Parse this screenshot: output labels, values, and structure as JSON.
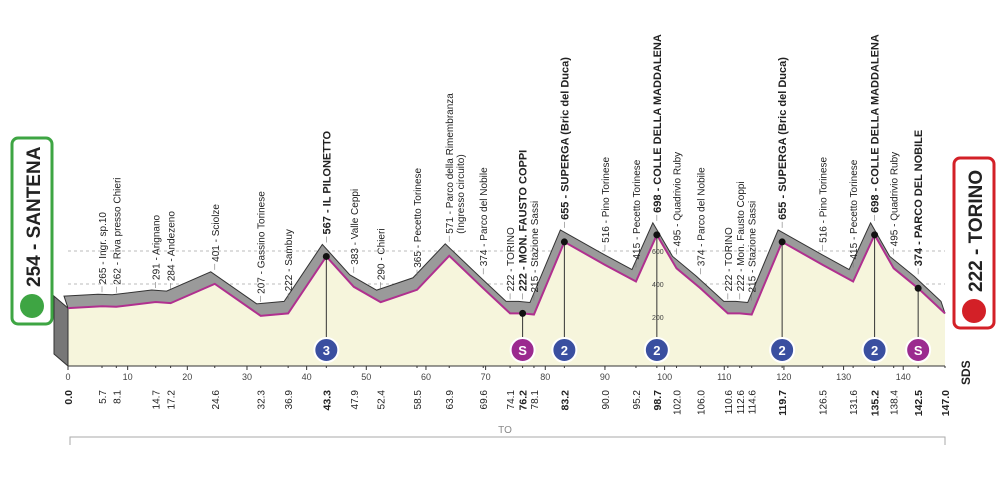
{
  "start": {
    "km": "0.0",
    "alt": 254,
    "label": "254 - SANTENA"
  },
  "finish": {
    "km": "147.0",
    "alt": 222,
    "label": "222 - TORINO"
  },
  "waypoints": [
    {
      "km": "5.7",
      "alt": 265,
      "label": "265 - Ingr. sp.10"
    },
    {
      "km": "8.1",
      "alt": 262,
      "label": "262 - Riva presso Chieri"
    },
    {
      "km": "14.7",
      "alt": 291,
      "label": "291 - Arignano"
    },
    {
      "km": "17.2",
      "alt": 284,
      "label": "284 - Andezeno"
    },
    {
      "km": "24.6",
      "alt": 401,
      "label": "401 - Sciolze"
    },
    {
      "km": "32.3",
      "alt": 207,
      "label": "207 - Gassino Torinese"
    },
    {
      "km": "36.9",
      "alt": 222,
      "label": "222 - Sambuy"
    },
    {
      "km": "43.3",
      "alt": 567,
      "label": "567 - IL PILONETTO",
      "bold": true,
      "badge": "3",
      "badge_kind": "gpm"
    },
    {
      "km": "47.9",
      "alt": 383,
      "label": "383 - Valle Ceppi"
    },
    {
      "km": "52.4",
      "alt": 290,
      "label": "290 - Chieri"
    },
    {
      "km": "58.5",
      "alt": 365,
      "label": "365 - Pecetto Torinese"
    },
    {
      "km": "63.9",
      "alt": 571,
      "label": "571 - Parco della Rimembranza",
      "label2": "(Ingresso circuito)"
    },
    {
      "km": "69.6",
      "alt": 374,
      "label": "374 - Parco del Nobile"
    },
    {
      "km": "74.1",
      "alt": 222,
      "label": "222 - TORINO"
    },
    {
      "km": "76.2",
      "alt": 222,
      "label": "222 - MON. FAUSTO COPPI",
      "bold": true,
      "badge": "S",
      "badge_kind": "sprint"
    },
    {
      "km": "78.1",
      "alt": 215,
      "label": "215 - Stazione Sassi"
    },
    {
      "km": "83.2",
      "alt": 655,
      "label": "655 - SUPERGA (Bric del Duca)",
      "bold": true,
      "badge": "2",
      "badge_kind": "gpm"
    },
    {
      "km": "90.0",
      "alt": 516,
      "label": "516 - Pino Torinese"
    },
    {
      "km": "95.2",
      "alt": 415,
      "label": "415 - Pecetto Torinese"
    },
    {
      "km": "98.7",
      "alt": 698,
      "label": "698 - COLLE DELLA MADDALENA",
      "bold": true,
      "badge": "2",
      "badge_kind": "gpm"
    },
    {
      "km": "102.0",
      "alt": 495,
      "label": "495 - Quadrivio Ruby"
    },
    {
      "km": "106.0",
      "alt": 374,
      "label": "374 - Parco del Nobile"
    },
    {
      "km": "110.6",
      "alt": 222,
      "label": "222 - TORINO"
    },
    {
      "km": "112.6",
      "alt": 222,
      "label": "222 - Mon. Fausto Coppi"
    },
    {
      "km": "114.6",
      "alt": 215,
      "label": "215 - Stazione Sassi"
    },
    {
      "km": "119.7",
      "alt": 655,
      "label": "655 - SUPERGA (Bric del Duca)",
      "bold": true,
      "badge": "2",
      "badge_kind": "gpm"
    },
    {
      "km": "126.5",
      "alt": 516,
      "label": "516 - Pino Torinese"
    },
    {
      "km": "131.6",
      "alt": 415,
      "label": "415 - Pecetto Torinese"
    },
    {
      "km": "135.2",
      "alt": 698,
      "label": "698 - COLLE DELLA MADDALENA",
      "bold": true,
      "badge": "2",
      "badge_kind": "gpm"
    },
    {
      "km": "138.4",
      "alt": 495,
      "label": "495 - Quadrivio Ruby"
    },
    {
      "km": "142.5",
      "alt": 374,
      "label": "374 - PARCO DEL NOBILE",
      "bold": true,
      "badge": "S",
      "badge_kind": "sprint"
    }
  ],
  "km_ticks": [
    0,
    10,
    20,
    30,
    40,
    50,
    60,
    70,
    80,
    90,
    100,
    110,
    120,
    130,
    140
  ],
  "alt_scale": [
    200,
    400,
    600
  ],
  "province": "TO",
  "brand": "SDS"
}
